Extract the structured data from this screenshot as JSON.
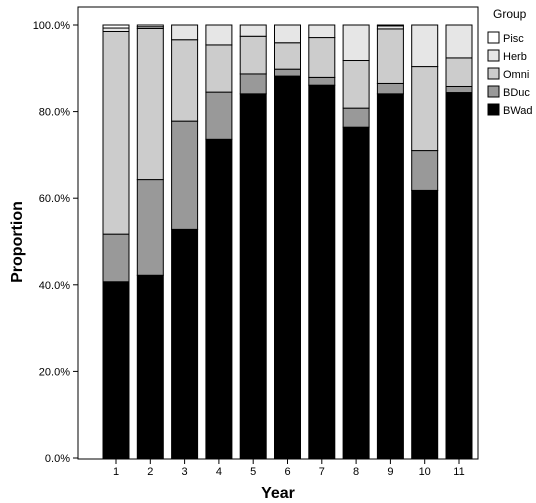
{
  "chart_data": {
    "type": "bar",
    "stacked": true,
    "categories": [
      "1",
      "2",
      "3",
      "4",
      "5",
      "6",
      "7",
      "8",
      "9",
      "10",
      "11"
    ],
    "series": [
      {
        "name": "BWad",
        "color": "#000000",
        "values": [
          40.7,
          42.2,
          52.8,
          73.6,
          84.1,
          88.2,
          86.1,
          76.4,
          84.1,
          61.8,
          84.4
        ]
      },
      {
        "name": "BDuc",
        "color": "#999999",
        "values": [
          11.0,
          22.1,
          25.0,
          10.9,
          4.6,
          1.6,
          1.8,
          4.4,
          2.4,
          9.2,
          1.4
        ]
      },
      {
        "name": "Omni",
        "color": "#cccccc",
        "values": [
          46.8,
          34.9,
          18.8,
          10.9,
          8.7,
          6.1,
          9.2,
          11.0,
          12.6,
          19.4,
          6.6
        ]
      },
      {
        "name": "Herb",
        "color": "#e6e6e6",
        "values": [
          0.8,
          0.4,
          3.4,
          4.6,
          2.6,
          4.1,
          2.9,
          8.2,
          0.7,
          9.6,
          7.6
        ]
      },
      {
        "name": "Pisc",
        "color": "#ffffff",
        "values": [
          0.7,
          0.4,
          0.0,
          0.0,
          0.0,
          0.0,
          0.0,
          0.0,
          0.2,
          0.0,
          0.0
        ]
      }
    ],
    "ylim": [
      0,
      100
    ],
    "yticks": [
      "0.0%",
      "20.0%",
      "40.0%",
      "60.0%",
      "80.0%",
      "100.0%"
    ],
    "xlabel": "Year",
    "ylabel": "Proportion",
    "legend_title": "Group",
    "legend_order": [
      "Pisc",
      "Herb",
      "Omni",
      "BDuc",
      "BWad"
    ],
    "legend_position": "right",
    "grid": false
  }
}
